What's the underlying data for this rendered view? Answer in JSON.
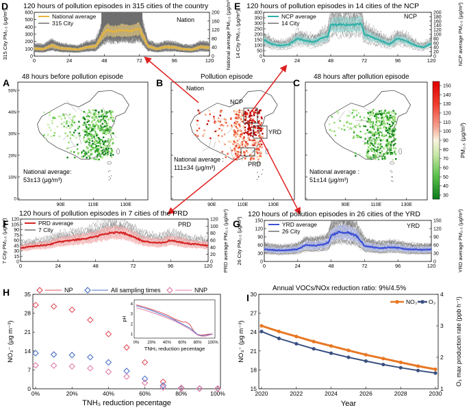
{
  "colors": {
    "nation": "#e8b43a",
    "ncp": "#2bb0a8",
    "prd": "#d62424",
    "yrd": "#3a4fd6",
    "city": "#707070",
    "np": "#e0505a",
    "all": "#4a6fc4",
    "nnp": "#e07aa8",
    "no3": "#e87722",
    "o3": "#3a5080",
    "arrow": "#e02020"
  },
  "panels": {
    "D": {
      "letter": "D",
      "title": "120 hours of pollution episodes in 315 cities of the country",
      "legend_avg": "National average",
      "legend_city": "315 City",
      "region": "Nation",
      "ylabel_left": "315 City PM₂.₅ (μg/m³)",
      "ylabel_right": "National average PM₂.₅ (μg/m³)"
    },
    "E": {
      "letter": "E",
      "title": "120 hours of pollution episodes in 14 cities of the NCP",
      "legend_avg": "NCP average",
      "legend_city": "14 City",
      "region": "NCP",
      "ylabel_left": "14 City PM₂.₅ (μg/m³)",
      "ylabel_right": "NCP average PM₂.₅ (μg/m³)"
    },
    "F": {
      "letter": "F",
      "title": "120 hours of pollution episodes in 7 cities of the PRD",
      "legend_avg": "PRD average",
      "legend_city": "7 City",
      "region": "PRD",
      "ylabel_left": "7 City PM₂.₅ (μg/m³)",
      "ylabel_right": "PRD average PM₂.₅ (μg/m³)"
    },
    "G": {
      "letter": "G",
      "title": "120 hours of pollution episodes in 26 cities of the YRD",
      "legend_avg": "YRD average",
      "legend_city": "26 City",
      "region": "YRD",
      "ylabel_left": "26 City PM₂.₅ (μg/m³)",
      "ylabel_right": "YRD average PM₂.₅ (μg/m³)"
    },
    "A": {
      "letter": "A",
      "title": "48 hours before pollution episode",
      "avg_label": "National average:",
      "avg_value": "53±13 (μg/m³)"
    },
    "B": {
      "letter": "B",
      "title": "Pollution episode",
      "avg_label": "National average :",
      "avg_value": "111±34 (μg/m³)",
      "regions": [
        "Nation",
        "NCP",
        "YRD",
        "PRD"
      ]
    },
    "C": {
      "letter": "C",
      "title": "48 hours after pollution episode",
      "avg_label": "National average :",
      "avg_value": "51±14 (μg/m³)"
    },
    "colorbar": {
      "ticks": [
        "150",
        "140",
        "130",
        "120",
        "110",
        "100",
        "90",
        "80",
        "70",
        "60",
        "50",
        "40",
        "30"
      ],
      "label": "PM₂.₅ (μg/m³)"
    },
    "map_axes": {
      "lat_ticks": [
        "50N",
        "40N",
        "30N",
        "20N",
        "10N",
        "0"
      ],
      "lon_ticks": [
        "90E",
        "110E",
        "130E"
      ]
    },
    "H": {
      "letter": "H",
      "legend": [
        "NP",
        "All sampling times",
        "NNP"
      ],
      "xlabel": "TNH₃ reduction pecentage",
      "ylabel": "NO₃⁻ (μg m⁻³)",
      "inset_xlabel": "TNH₃ reduction pecentage",
      "inset_ylabel": "pH",
      "inset_yticks": [
        "4",
        "3",
        "2",
        "1"
      ],
      "inset_xticks": [
        "0%",
        "20%",
        "40%",
        "60%",
        "80%",
        "100%"
      ]
    },
    "I": {
      "letter": "I",
      "title": "Annual VOCs/NOx reduction ratio: 9%/4.5%",
      "legend": [
        "NO₃⁻",
        "O₃"
      ],
      "xlabel": "Year",
      "ylabel_left": "NO₃⁻ (μg m⁻³)",
      "ylabel_right": "O₃ max production rate (ppb h⁻¹)"
    }
  },
  "chart_data": [
    {
      "id": "D",
      "type": "line",
      "x": [
        0,
        6,
        12,
        18,
        24,
        30,
        36,
        42,
        48,
        50,
        54,
        60,
        66,
        72,
        78,
        84,
        90,
        96,
        102,
        108,
        114,
        120
      ],
      "series": [
        {
          "name": "National average",
          "values": [
            35,
            32,
            48,
            36,
            33,
            30,
            40,
            45,
            108,
            120,
            112,
            118,
            115,
            125,
            45,
            33,
            42,
            40,
            32,
            30,
            42,
            38
          ]
        }
      ],
      "xlim": [
        0,
        120
      ],
      "ylim_left": [
        0,
        600
      ],
      "ylim_right": [
        0,
        200
      ],
      "xticks": [
        0,
        24,
        48,
        72,
        96,
        120
      ],
      "yticks_left": [
        0,
        100,
        200,
        300,
        400,
        500,
        600
      ],
      "yticks_right": [
        0,
        40,
        80,
        120,
        160,
        200
      ]
    },
    {
      "id": "E",
      "type": "line",
      "x": [
        0,
        6,
        12,
        18,
        24,
        30,
        36,
        42,
        46,
        48,
        54,
        60,
        66,
        70,
        72,
        78,
        84,
        90,
        96,
        102,
        108,
        114,
        120
      ],
      "series": [
        {
          "name": "NCP average",
          "values": [
            75,
            55,
            48,
            52,
            80,
            70,
            65,
            82,
            90,
            140,
            145,
            142,
            145,
            148,
            100,
            85,
            70,
            55,
            80,
            70,
            50,
            40,
            58
          ]
        }
      ],
      "xlim": [
        0,
        120
      ],
      "ylim_left": [
        0,
        400
      ],
      "ylim_right": [
        0,
        200
      ],
      "xticks": [
        0,
        24,
        48,
        72,
        96,
        120
      ],
      "yticks_left": [
        0,
        50,
        100,
        150,
        200,
        250,
        300,
        350,
        400
      ],
      "yticks_right": [
        0,
        20,
        40,
        60,
        80,
        100,
        120,
        140,
        160,
        180,
        200
      ]
    },
    {
      "id": "F",
      "type": "line",
      "x": [
        0,
        6,
        12,
        18,
        24,
        30,
        36,
        42,
        48,
        54,
        60,
        66,
        72,
        78,
        84,
        90,
        96,
        102,
        108,
        114,
        120
      ],
      "series": [
        {
          "name": "PRD average",
          "values": [
            38,
            42,
            45,
            47,
            55,
            58,
            62,
            65,
            70,
            78,
            82,
            80,
            70,
            58,
            54,
            52,
            60,
            55,
            50,
            48,
            45
          ]
        }
      ],
      "xlim": [
        0,
        120
      ],
      "ylim_left": [
        0,
        120
      ],
      "ylim_right": [
        0,
        120
      ],
      "xticks": [
        0,
        24,
        48,
        72,
        96,
        120
      ],
      "yticks_left": [
        0,
        15,
        30,
        45,
        60,
        75,
        90,
        105,
        120
      ],
      "yticks_right": [
        0,
        20,
        40,
        60,
        80,
        100,
        120
      ]
    },
    {
      "id": "G",
      "type": "line",
      "x": [
        0,
        6,
        12,
        18,
        24,
        30,
        36,
        42,
        46,
        48,
        54,
        60,
        66,
        72,
        78,
        84,
        90,
        96,
        102,
        108,
        114,
        120
      ],
      "series": [
        {
          "name": "YRD average",
          "values": [
            45,
            42,
            40,
            42,
            45,
            60,
            58,
            62,
            70,
            95,
            108,
            105,
            95,
            58,
            52,
            48,
            52,
            50,
            45,
            44,
            42,
            45
          ]
        }
      ],
      "xlim": [
        0,
        120
      ],
      "ylim_left": [
        0,
        150
      ],
      "ylim_right": [
        0,
        150
      ],
      "xticks": [
        0,
        24,
        48,
        72,
        96,
        120
      ],
      "yticks_left": [
        0,
        30,
        60,
        90,
        120,
        150
      ],
      "yticks_right": [
        0,
        30,
        60,
        90,
        120,
        150
      ]
    },
    {
      "id": "H",
      "type": "scatter",
      "x": [
        0,
        10,
        20,
        30,
        40,
        50,
        60,
        70,
        80,
        90,
        100
      ],
      "series": [
        {
          "name": "NP",
          "values": [
            31,
            30.5,
            29.3,
            25.5,
            20.3,
            15.3,
            9.8,
            2.6,
            0.3,
            0.1,
            0.1
          ]
        },
        {
          "name": "All sampling times",
          "values": [
            13.2,
            12.7,
            12.5,
            11.7,
            9.8,
            6.6,
            3.7,
            1.2,
            0.2,
            0.1,
            0.1
          ]
        },
        {
          "name": "NNP",
          "values": [
            8.7,
            8.6,
            8.3,
            7.6,
            6.3,
            4.5,
            2.2,
            0.5,
            0.1,
            0.05,
            0.05
          ]
        }
      ],
      "xlim": [
        0,
        100
      ],
      "ylim": [
        0,
        35
      ],
      "xticks": [
        "0%",
        "20%",
        "40%",
        "60%",
        "80%",
        "100%"
      ],
      "yticks": [
        0,
        7,
        14,
        21,
        28,
        35
      ],
      "inset": {
        "type": "line",
        "x": [
          0,
          10,
          20,
          30,
          40,
          50,
          60,
          65,
          70,
          75,
          80,
          85,
          90,
          95,
          100
        ],
        "series": [
          {
            "name": "NP",
            "values": [
              3.9,
              3.7,
              3.45,
              3.2,
              2.9,
              2.5,
              2.2,
              2.2,
              1.95,
              1.3,
              0.95,
              0.9,
              0.95,
              1.0,
              1.0
            ]
          },
          {
            "name": "All sampling times",
            "values": [
              3.8,
              3.6,
              3.35,
              3.05,
              2.75,
              2.4,
              2.0,
              1.8,
              1.6,
              1.3,
              0.95,
              0.85,
              0.85,
              0.95,
              1.0
            ]
          },
          {
            "name": "NNP",
            "values": [
              3.6,
              3.4,
              3.15,
              2.9,
              2.6,
              2.3,
              1.9,
              1.7,
              1.45,
              1.2,
              0.9,
              0.8,
              0.8,
              0.9,
              1.0
            ]
          }
        ],
        "xlim": [
          0,
          100
        ],
        "ylim": [
          0.6,
          4.4
        ]
      }
    },
    {
      "id": "I",
      "type": "line",
      "x": [
        2020,
        2021,
        2022,
        2023,
        2024,
        2025,
        2026,
        2027,
        2028,
        2029,
        2030
      ],
      "series": [
        {
          "name": "NO₃⁻",
          "axis": "left",
          "values": [
            25.0,
            24.1,
            23.3,
            22.5,
            21.8,
            21.1,
            20.4,
            19.8,
            19.2,
            18.6,
            18.1
          ]
        },
        {
          "name": "O₃",
          "axis": "right",
          "values": [
            2.82,
            2.6,
            2.43,
            2.27,
            2.13,
            2.0,
            1.88,
            1.77,
            1.67,
            1.58,
            1.5
          ]
        }
      ],
      "xlim": [
        2020,
        2030
      ],
      "ylim_left": [
        15,
        30
      ],
      "ylim_right": [
        1,
        4
      ],
      "xticks": [
        2020,
        2022,
        2024,
        2026,
        2028,
        2030
      ],
      "yticks_left": [
        15,
        18,
        21,
        24,
        27,
        30
      ],
      "yticks_right": [
        1,
        2,
        3,
        4
      ]
    }
  ]
}
